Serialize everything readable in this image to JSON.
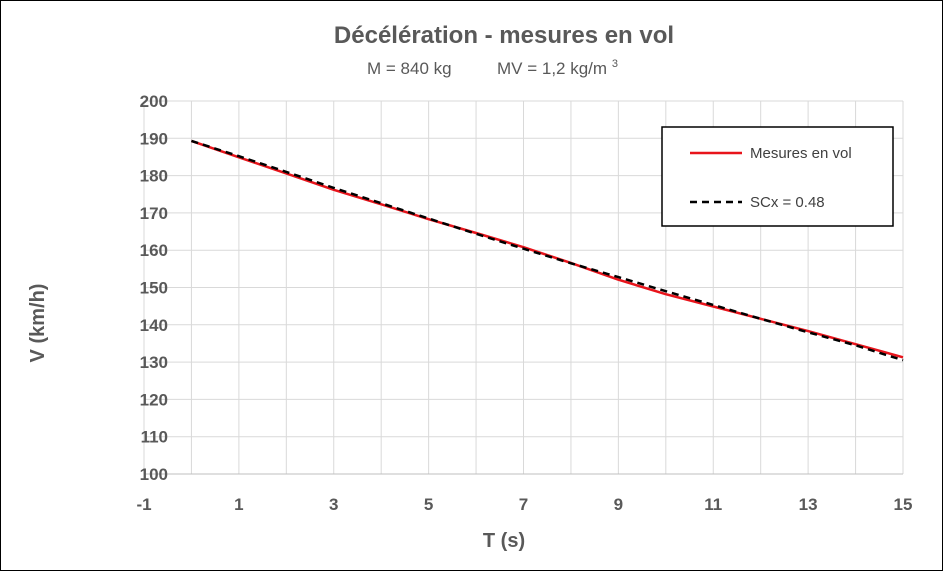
{
  "chart_data": {
    "type": "line",
    "title": "Décélération - mesures en vol",
    "subtitle_mass": "M = 840 kg",
    "subtitle_density_prefix": "MV = 1,2 kg/m",
    "subtitle_density_exp": "3",
    "xlabel": "T (s)",
    "ylabel": "V (km/h)",
    "xlim": [
      -1,
      15
    ],
    "ylim": [
      100,
      200
    ],
    "x_ticks": [
      -1,
      1,
      3,
      5,
      7,
      9,
      11,
      13,
      15
    ],
    "y_ticks": [
      100,
      110,
      120,
      130,
      140,
      150,
      160,
      170,
      180,
      190,
      200
    ],
    "grid": true,
    "legend_position": "top-right",
    "series": [
      {
        "name": "Mesures en vol",
        "color": "#e8141b",
        "style": "solid",
        "x": [
          0,
          1,
          2,
          3,
          4,
          5,
          6,
          7,
          8,
          9,
          10,
          11,
          12,
          13,
          14,
          15
        ],
        "y": [
          189.3,
          184.9,
          180.6,
          176.2,
          172.3,
          168.3,
          164.6,
          160.8,
          156.6,
          152.1,
          148.2,
          144.9,
          141.6,
          138.3,
          134.8,
          131.3
        ]
      },
      {
        "name": "SCx = 0.48",
        "color": "#000000",
        "style": "dashed",
        "x": [
          0,
          1,
          2,
          3,
          4,
          5,
          6,
          7,
          8,
          9,
          10,
          11,
          12,
          13,
          14,
          15
        ],
        "y": [
          189.3,
          185.2,
          181.0,
          176.7,
          172.6,
          168.5,
          164.4,
          160.4,
          156.5,
          152.8,
          149.0,
          145.3,
          141.6,
          138.0,
          134.5,
          130.5
        ]
      }
    ]
  }
}
